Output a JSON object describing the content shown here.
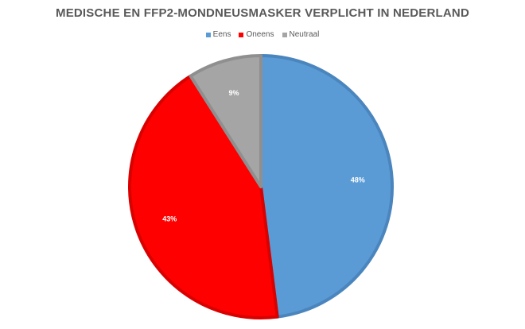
{
  "chart_data": {
    "type": "pie",
    "title": "MEDISCHE EN FFP2-MONDNEUSMASKER VERPLICHT IN NEDERLAND",
    "legend_position": "top",
    "categories": [
      "Eens",
      "Oneens",
      "Neutraal"
    ],
    "values": [
      48,
      43,
      9
    ],
    "value_labels": [
      "48%",
      "43%",
      "9%"
    ],
    "colors": [
      "#5B9BD5",
      "#FF0000",
      "#A5A5A5"
    ],
    "border_colors": [
      "#4A85BE",
      "#D90000",
      "#8F8F8F"
    ]
  }
}
